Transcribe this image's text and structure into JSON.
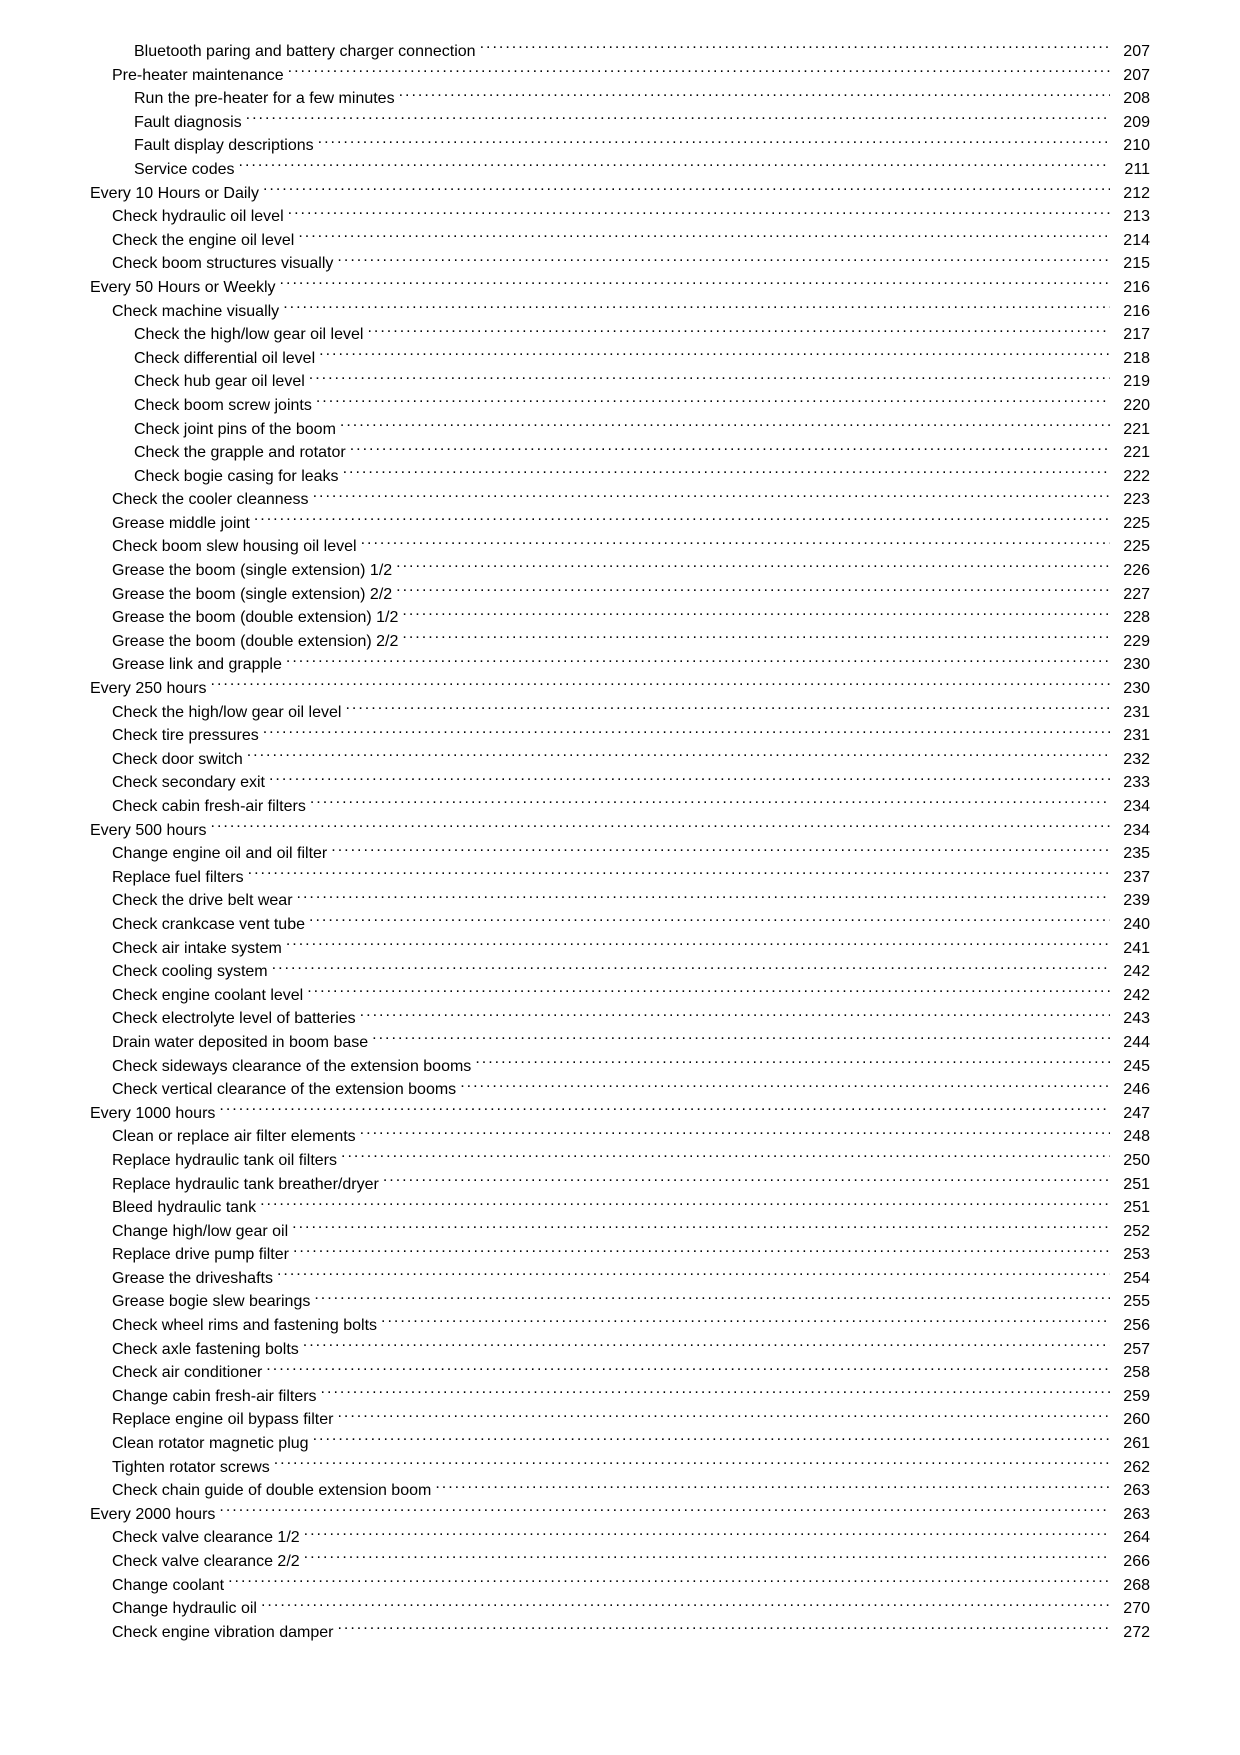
{
  "toc": [
    {
      "indent": 2,
      "label": "Bluetooth paring and battery charger connection",
      "page": "207"
    },
    {
      "indent": 1,
      "label": "Pre-heater maintenance",
      "page": "207"
    },
    {
      "indent": 2,
      "label": "Run the pre-heater for a few minutes",
      "page": "208"
    },
    {
      "indent": 2,
      "label": "Fault diagnosis",
      "page": "209"
    },
    {
      "indent": 2,
      "label": "Fault display descriptions",
      "page": "210"
    },
    {
      "indent": 2,
      "label": "Service codes",
      "page": "211"
    },
    {
      "indent": 0,
      "label": "Every 10 Hours or Daily",
      "page": "212"
    },
    {
      "indent": 1,
      "label": "Check hydraulic oil level",
      "page": "213"
    },
    {
      "indent": 1,
      "label": "Check the engine oil level",
      "page": "214"
    },
    {
      "indent": 1,
      "label": "Check boom structures visually",
      "page": "215"
    },
    {
      "indent": 0,
      "label": "Every 50 Hours or Weekly",
      "page": "216"
    },
    {
      "indent": 1,
      "label": "Check machine visually",
      "page": "216"
    },
    {
      "indent": 2,
      "label": "Check the high/low gear oil level",
      "page": "217"
    },
    {
      "indent": 2,
      "label": "Check differential oil level",
      "page": "218"
    },
    {
      "indent": 2,
      "label": "Check hub gear oil level",
      "page": "219"
    },
    {
      "indent": 2,
      "label": "Check boom screw joints",
      "page": "220"
    },
    {
      "indent": 2,
      "label": "Check joint pins of the boom",
      "page": "221"
    },
    {
      "indent": 2,
      "label": "Check the grapple and rotator",
      "page": "221"
    },
    {
      "indent": 2,
      "label": "Check bogie casing for leaks",
      "page": "222"
    },
    {
      "indent": 1,
      "label": "Check the cooler cleanness",
      "page": "223"
    },
    {
      "indent": 1,
      "label": "Grease middle joint",
      "page": "225"
    },
    {
      "indent": 1,
      "label": "Check boom slew housing oil level",
      "page": "225"
    },
    {
      "indent": 1,
      "label": "Grease the boom (single extension) 1/2",
      "page": "226"
    },
    {
      "indent": 1,
      "label": "Grease the boom (single extension) 2/2",
      "page": "227"
    },
    {
      "indent": 1,
      "label": "Grease the boom (double extension) 1/2",
      "page": "228"
    },
    {
      "indent": 1,
      "label": "Grease the boom (double extension) 2/2",
      "page": "229"
    },
    {
      "indent": 1,
      "label": "Grease link and grapple",
      "page": "230"
    },
    {
      "indent": 0,
      "label": "Every 250 hours",
      "page": "230"
    },
    {
      "indent": 1,
      "label": "Check the high/low gear oil level",
      "page": "231"
    },
    {
      "indent": 1,
      "label": "Check tire pressures",
      "page": "231"
    },
    {
      "indent": 1,
      "label": "Check door switch",
      "page": "232"
    },
    {
      "indent": 1,
      "label": "Check secondary exit",
      "page": "233"
    },
    {
      "indent": 1,
      "label": "Check cabin fresh-air filters",
      "page": "234"
    },
    {
      "indent": 0,
      "label": "Every 500 hours",
      "page": "234"
    },
    {
      "indent": 1,
      "label": "Change engine oil and oil filter",
      "page": "235"
    },
    {
      "indent": 1,
      "label": "Replace fuel filters",
      "page": "237"
    },
    {
      "indent": 1,
      "label": "Check the drive belt wear",
      "page": "239"
    },
    {
      "indent": 1,
      "label": "Check crankcase vent tube",
      "page": "240"
    },
    {
      "indent": 1,
      "label": "Check air intake system",
      "page": "241"
    },
    {
      "indent": 1,
      "label": "Check cooling system",
      "page": "242"
    },
    {
      "indent": 1,
      "label": "Check engine coolant level",
      "page": "242"
    },
    {
      "indent": 1,
      "label": "Check electrolyte level of batteries",
      "page": "243"
    },
    {
      "indent": 1,
      "label": "Drain water deposited in boom base",
      "page": "244"
    },
    {
      "indent": 1,
      "label": "Check sideways clearance of the extension booms",
      "page": "245"
    },
    {
      "indent": 1,
      "label": "Check vertical clearance of the extension booms",
      "page": "246"
    },
    {
      "indent": 0,
      "label": "Every 1000 hours",
      "page": "247"
    },
    {
      "indent": 1,
      "label": "Clean or replace air filter elements",
      "page": "248"
    },
    {
      "indent": 1,
      "label": "Replace hydraulic tank oil filters",
      "page": "250"
    },
    {
      "indent": 1,
      "label": "Replace hydraulic tank breather/dryer",
      "page": "251"
    },
    {
      "indent": 1,
      "label": "Bleed hydraulic tank",
      "page": "251"
    },
    {
      "indent": 1,
      "label": "Change high/low gear oil",
      "page": "252"
    },
    {
      "indent": 1,
      "label": "Replace drive pump filter",
      "page": "253"
    },
    {
      "indent": 1,
      "label": "Grease the driveshafts",
      "page": "254"
    },
    {
      "indent": 1,
      "label": "Grease bogie slew bearings",
      "page": "255"
    },
    {
      "indent": 1,
      "label": "Check wheel rims and fastening bolts",
      "page": "256"
    },
    {
      "indent": 1,
      "label": "Check axle fastening bolts",
      "page": "257"
    },
    {
      "indent": 1,
      "label": "Check air conditioner",
      "page": "258"
    },
    {
      "indent": 1,
      "label": "Change cabin fresh-air filters",
      "page": "259"
    },
    {
      "indent": 1,
      "label": "Replace engine oil bypass filter",
      "page": "260"
    },
    {
      "indent": 1,
      "label": "Clean rotator magnetic plug",
      "page": "261"
    },
    {
      "indent": 1,
      "label": "Tighten rotator screws",
      "page": "262"
    },
    {
      "indent": 1,
      "label": "Check chain guide of double extension boom",
      "page": "263"
    },
    {
      "indent": 0,
      "label": "Every 2000 hours",
      "page": "263"
    },
    {
      "indent": 1,
      "label": "Check valve clearance 1/2",
      "page": "264"
    },
    {
      "indent": 1,
      "label": "Check valve clearance 2/2",
      "page": "266"
    },
    {
      "indent": 1,
      "label": "Change coolant",
      "page": "268"
    },
    {
      "indent": 1,
      "label": "Change hydraulic oil",
      "page": "270"
    },
    {
      "indent": 1,
      "label": "Check engine vibration damper",
      "page": "272"
    }
  ]
}
